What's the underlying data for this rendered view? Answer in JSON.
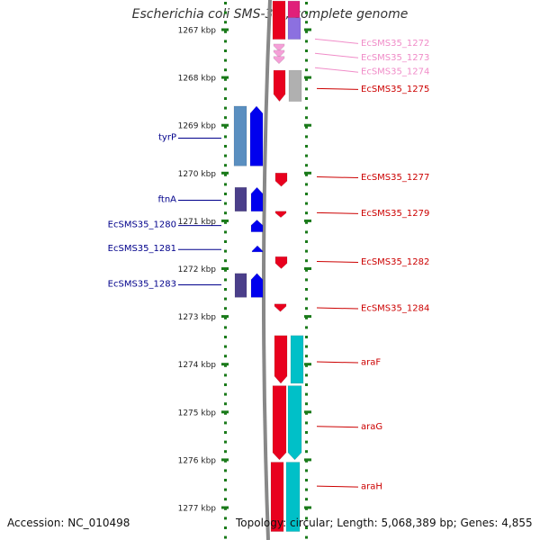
{
  "title": "Escherichia coli SMS-3-5, complete genome",
  "footer": {
    "accession": "Accession: NC_010498",
    "summary": "Topology: circular; Length: 5,068,389 bp; Genes: 4,855"
  },
  "colors": {
    "tick": "#1a7a1a",
    "left_label": "#00008b",
    "right_label": "#cc0000",
    "faded_label": "#f08cc8",
    "backbone": "#888888",
    "blue_gene": "#0000ee",
    "steel": "#5a8fc0",
    "slate": "#4b3f8a",
    "red_gene": "#e8001e",
    "cyan_gene": "#00c0c8",
    "grey_gene": "#b0b0b0",
    "pink_gene": "#f5a0d8",
    "magenta_gene": "#e0207a",
    "violet_gene": "#8c70e0"
  },
  "scale": {
    "unit": "kbp",
    "ticks": [
      {
        "value": 1267,
        "label": "1267 kbp"
      },
      {
        "value": 1268,
        "label": "1268 kbp"
      },
      {
        "value": 1269,
        "label": "1269 kbp"
      },
      {
        "value": 1270,
        "label": "1270 kbp"
      },
      {
        "value": 1271,
        "label": "1271 kbp"
      },
      {
        "value": 1272,
        "label": "1272 kbp"
      },
      {
        "value": 1273,
        "label": "1273 kbp"
      },
      {
        "value": 1274,
        "label": "1274 kbp"
      },
      {
        "value": 1275,
        "label": "1275 kbp"
      },
      {
        "value": 1276,
        "label": "1276 kbp"
      },
      {
        "value": 1277,
        "label": "1277 kbp"
      }
    ]
  },
  "left_labels": [
    {
      "name": "tyrP",
      "kbp": 1269.25
    },
    {
      "name": "ftnA",
      "kbp": 1270.55
    },
    {
      "name": "EcSMS35_1280",
      "kbp": 1271.08
    },
    {
      "name": "EcSMS35_1281",
      "kbp": 1271.58
    },
    {
      "name": "EcSMS35_1283",
      "kbp": 1272.32
    }
  ],
  "right_labels": [
    {
      "name": "EcSMS35_1272",
      "kbp": 1267.27,
      "faded": true
    },
    {
      "name": "EcSMS35_1273",
      "kbp": 1267.57,
      "faded": true
    },
    {
      "name": "EcSMS35_1274",
      "kbp": 1267.87,
      "faded": true
    },
    {
      "name": "EcSMS35_1275",
      "kbp": 1268.23,
      "faded": false
    },
    {
      "name": "EcSMS35_1277",
      "kbp": 1270.08,
      "faded": false
    },
    {
      "name": "EcSMS35_1279",
      "kbp": 1270.83,
      "faded": false
    },
    {
      "name": "EcSMS35_1282",
      "kbp": 1271.85,
      "faded": false
    },
    {
      "name": "EcSMS35_1284",
      "kbp": 1272.82,
      "faded": false
    },
    {
      "name": "araF",
      "kbp": 1273.95,
      "faded": false
    },
    {
      "name": "araG",
      "kbp": 1275.3,
      "faded": false
    },
    {
      "name": "araH",
      "kbp": 1276.55,
      "faded": false
    }
  ]
}
